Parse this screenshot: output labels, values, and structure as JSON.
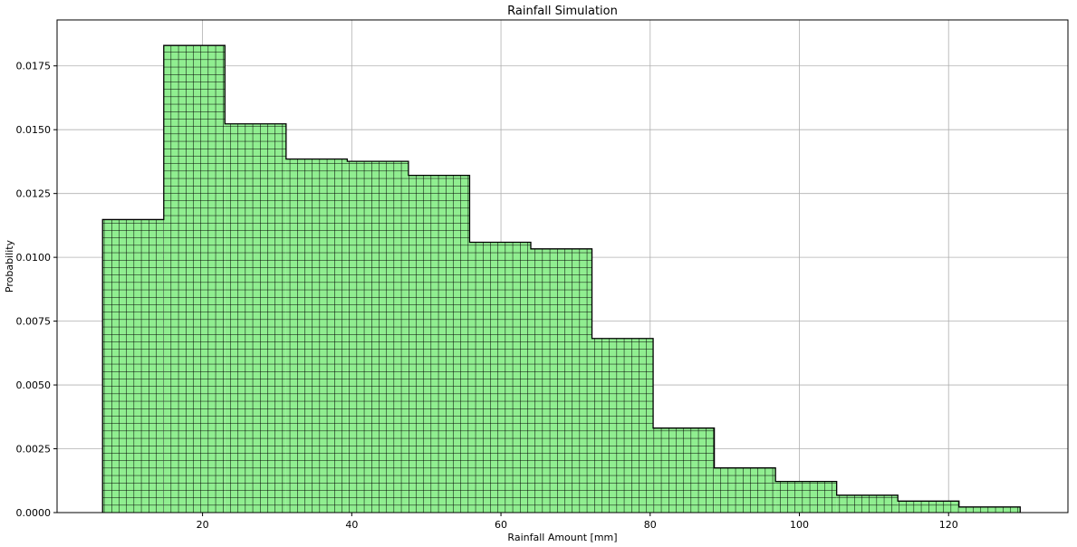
{
  "chart_data": {
    "type": "bar",
    "title": "Rainfall Simulation",
    "xlabel": "Rainfall Amount [mm]",
    "ylabel": "Probability",
    "xlim": [
      0.5,
      136
    ],
    "ylim": [
      0,
      0.0193
    ],
    "xticks": [
      20,
      40,
      60,
      80,
      100,
      120
    ],
    "yticks": [
      0.0,
      0.0025,
      0.005,
      0.0075,
      0.01,
      0.0125,
      0.015,
      0.0175
    ],
    "xtick_labels": [
      "20",
      "40",
      "60",
      "80",
      "100",
      "120"
    ],
    "ytick_labels": [
      "0.0000",
      "0.0025",
      "0.0050",
      "0.0075",
      "0.0100",
      "0.0125",
      "0.0150",
      "0.0175"
    ],
    "grid": true,
    "fill_color": "#90ee90",
    "edge_color": "#000000",
    "hatch": "grid",
    "bins": [
      {
        "x0": 6.6,
        "x1": 14.8,
        "value": 0.01148
      },
      {
        "x0": 14.8,
        "x1": 23.0,
        "value": 0.0183
      },
      {
        "x0": 23.0,
        "x1": 31.2,
        "value": 0.01523
      },
      {
        "x0": 31.2,
        "x1": 39.4,
        "value": 0.01385
      },
      {
        "x0": 39.4,
        "x1": 47.6,
        "value": 0.01376
      },
      {
        "x0": 47.6,
        "x1": 55.8,
        "value": 0.01321
      },
      {
        "x0": 55.8,
        "x1": 64.0,
        "value": 0.01059
      },
      {
        "x0": 64.0,
        "x1": 72.2,
        "value": 0.01033
      },
      {
        "x0": 72.2,
        "x1": 80.4,
        "value": 0.00682
      },
      {
        "x0": 80.4,
        "x1": 88.6,
        "value": 0.00331
      },
      {
        "x0": 88.6,
        "x1": 96.8,
        "value": 0.00175
      },
      {
        "x0": 96.8,
        "x1": 105.0,
        "value": 0.00122
      },
      {
        "x0": 105.0,
        "x1": 113.2,
        "value": 0.00068
      },
      {
        "x0": 113.2,
        "x1": 121.4,
        "value": 0.00045
      },
      {
        "x0": 121.4,
        "x1": 129.6,
        "value": 0.00022
      }
    ]
  }
}
